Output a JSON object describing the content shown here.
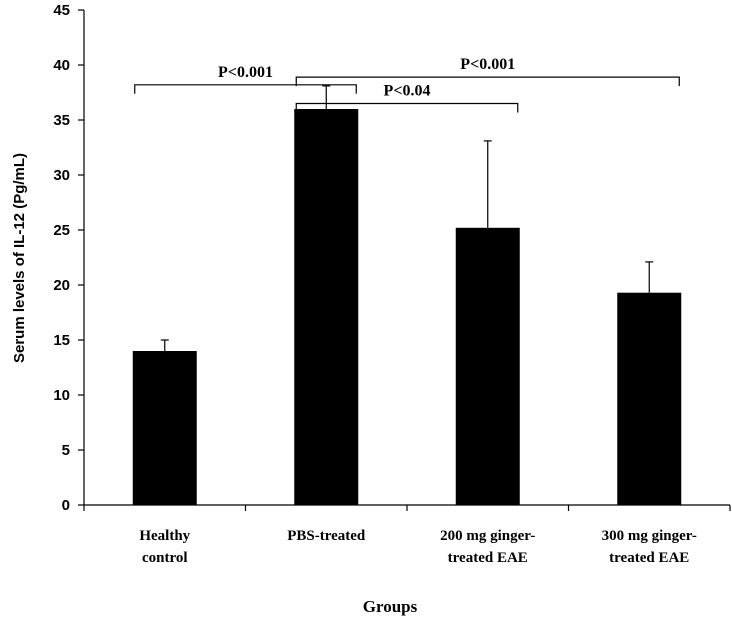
{
  "chart_data": {
    "type": "bar",
    "categories": [
      [
        "Healthy",
        "control"
      ],
      [
        "PBS-treated"
      ],
      [
        "200 mg ginger-",
        "treated  EAE"
      ],
      [
        "300 mg ginger-",
        "treated  EAE"
      ]
    ],
    "values": [
      14.0,
      36.0,
      25.2,
      19.3
    ],
    "error_upper": [
      1.0,
      2.1,
      7.9,
      2.8
    ],
    "xlabel": "Groups",
    "ylabel": "Serum levels of IL-12 (Pg/mL)",
    "ylim": [
      0,
      45
    ],
    "yticks": [
      0,
      5,
      10,
      15,
      20,
      25,
      30,
      35,
      40,
      45
    ],
    "bar_color": "#000000",
    "grid": false,
    "significance": [
      {
        "from": 0,
        "to": 1,
        "y": 38.2,
        "label": "P<0.001"
      },
      {
        "from": 1,
        "to": 3,
        "y": 38.9,
        "label": "P<0.001"
      },
      {
        "from": 1,
        "to": 2,
        "y": 36.5,
        "label": "P<0.04"
      }
    ]
  }
}
